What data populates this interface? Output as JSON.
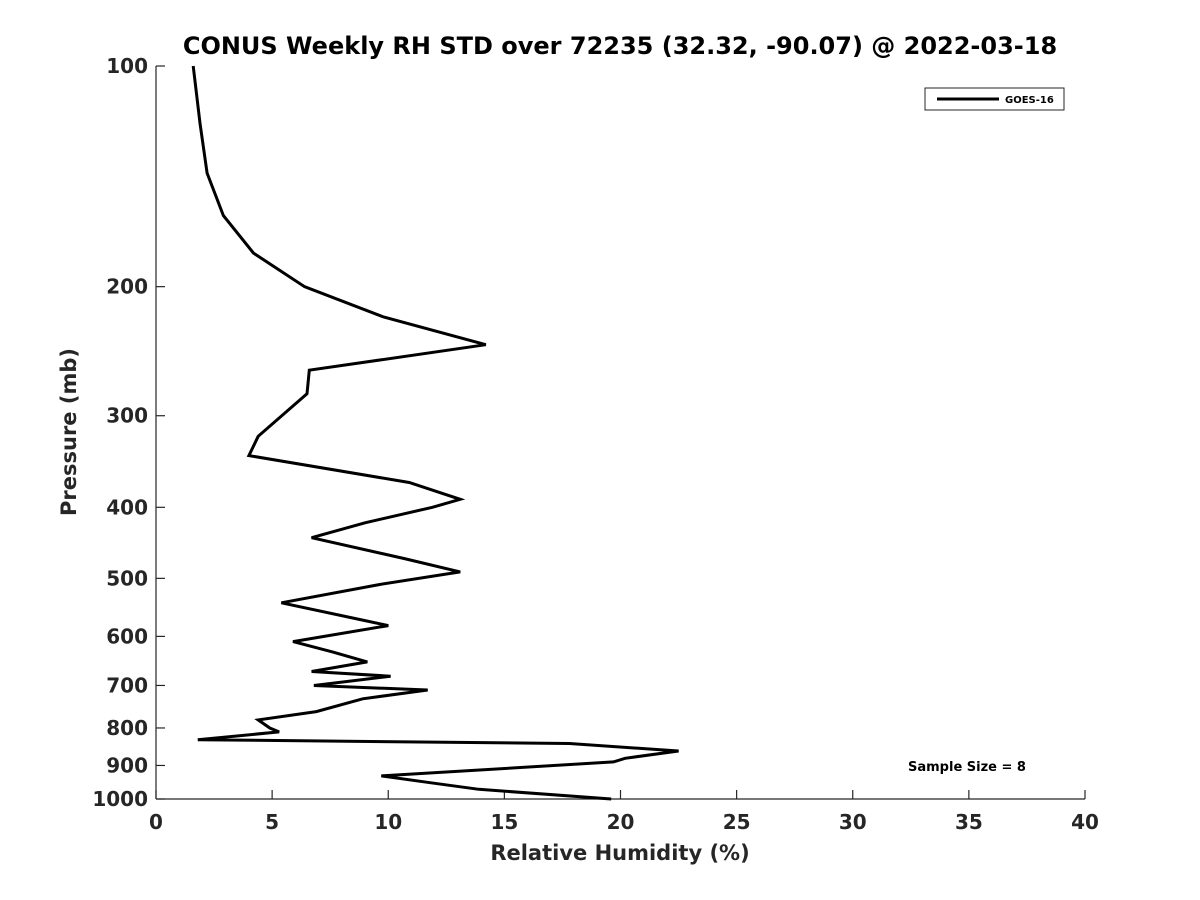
{
  "chart_data": {
    "type": "line",
    "title": "CONUS Weekly RH STD over 72235 (32.32, -90.07) @ 2022-03-18",
    "xlabel": "Relative Humidity (%)",
    "ylabel": "Pressure (mb)",
    "xlim": [
      0,
      40
    ],
    "ylim": [
      100,
      1000
    ],
    "y_scale": "log",
    "y_reversed": true,
    "grid": false,
    "x_ticks": [
      0,
      5,
      10,
      15,
      20,
      25,
      30,
      35,
      40
    ],
    "y_ticks": [
      100,
      200,
      300,
      400,
      500,
      600,
      700,
      800,
      900,
      1000
    ],
    "legend": {
      "position": "top-right",
      "entries": [
        "GOES-16"
      ]
    },
    "annotation": "Sample Size = 8",
    "series": [
      {
        "name": "GOES-16",
        "color": "#000000",
        "points": [
          [
            1.6,
            100
          ],
          [
            1.9,
            120
          ],
          [
            2.2,
            140
          ],
          [
            2.9,
            160
          ],
          [
            4.2,
            180
          ],
          [
            6.4,
            200
          ],
          [
            9.8,
            220
          ],
          [
            14.2,
            240
          ],
          [
            6.6,
            260
          ],
          [
            6.5,
            280
          ],
          [
            4.4,
            320
          ],
          [
            4.0,
            340
          ],
          [
            10.9,
            370
          ],
          [
            13.1,
            390
          ],
          [
            11.9,
            400
          ],
          [
            9.0,
            420
          ],
          [
            6.7,
            440
          ],
          [
            10.7,
            470
          ],
          [
            13.1,
            490
          ],
          [
            9.6,
            510
          ],
          [
            5.4,
            540
          ],
          [
            8.9,
            570
          ],
          [
            10.0,
            580
          ],
          [
            5.9,
            610
          ],
          [
            7.6,
            630
          ],
          [
            9.1,
            650
          ],
          [
            6.7,
            670
          ],
          [
            10.1,
            680
          ],
          [
            6.8,
            700
          ],
          [
            11.7,
            710
          ],
          [
            8.9,
            730
          ],
          [
            6.9,
            760
          ],
          [
            4.4,
            780
          ],
          [
            4.9,
            800
          ],
          [
            5.3,
            810
          ],
          [
            1.8,
            830
          ],
          [
            17.8,
            840
          ],
          [
            22.5,
            860
          ],
          [
            20.2,
            880
          ],
          [
            19.7,
            890
          ],
          [
            9.7,
            930
          ],
          [
            11.8,
            950
          ],
          [
            13.9,
            970
          ],
          [
            19.6,
            1000
          ]
        ]
      }
    ]
  }
}
